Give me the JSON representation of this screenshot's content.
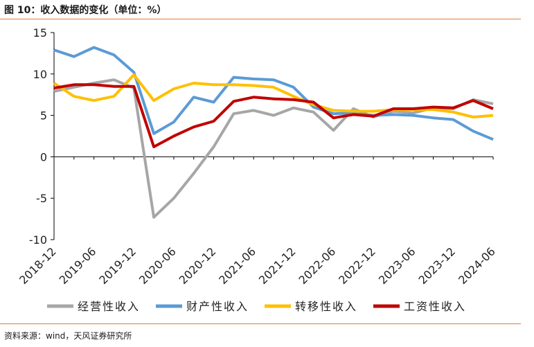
{
  "header": {
    "title": "图 10：收入数据的变化（单位：%）"
  },
  "footer": {
    "source": "资料来源：wind，天风证券研究所"
  },
  "chart_data": {
    "type": "line",
    "x": [
      "2018-12",
      "2019-03",
      "2019-06",
      "2019-09",
      "2019-12",
      "2020-03",
      "2020-06",
      "2020-09",
      "2020-12",
      "2021-03",
      "2021-06",
      "2021-09",
      "2021-12",
      "2022-03",
      "2022-06",
      "2022-09",
      "2022-12",
      "2023-03",
      "2023-06",
      "2023-09",
      "2023-12",
      "2024-03",
      "2024-06"
    ],
    "tick_labels": [
      "2018-12",
      "2019-06",
      "2019-12",
      "2020-06",
      "2020-12",
      "2021-06",
      "2021-12",
      "2022-06",
      "2022-12",
      "2023-06",
      "2023-12",
      "2024-06"
    ],
    "ylim": [
      -10,
      15
    ],
    "yticks": [
      -10,
      -5,
      0,
      5,
      10,
      15
    ],
    "series": [
      {
        "name": "经营性收入",
        "color": "#a6a6a6",
        "values": [
          7.9,
          8.4,
          8.9,
          9.3,
          8.3,
          -7.3,
          -5.0,
          -2.0,
          1.2,
          5.2,
          5.6,
          5.0,
          5.9,
          5.4,
          3.2,
          5.8,
          4.8,
          5.5,
          5.3,
          5.9,
          5.8,
          6.9,
          6.4
        ]
      },
      {
        "name": "财产性收入",
        "color": "#5b9bd5",
        "values": [
          12.9,
          12.1,
          13.2,
          12.3,
          10.2,
          2.8,
          4.2,
          7.2,
          6.6,
          9.6,
          9.4,
          9.3,
          8.4,
          6.0,
          5.2,
          5.3,
          5.0,
          5.1,
          5.0,
          4.7,
          4.5,
          3.1,
          2.1
        ]
      },
      {
        "name": "转移性收入",
        "color": "#ffc000",
        "values": [
          8.9,
          7.3,
          6.8,
          7.3,
          9.9,
          6.8,
          8.2,
          8.9,
          8.7,
          8.7,
          8.6,
          8.4,
          7.3,
          6.3,
          5.6,
          5.5,
          5.5,
          5.7,
          5.7,
          5.7,
          5.4,
          4.8,
          5.0
        ]
      },
      {
        "name": "工资性收入",
        "color": "#c00000",
        "values": [
          8.3,
          8.7,
          8.7,
          8.5,
          8.5,
          1.2,
          2.5,
          3.6,
          4.3,
          6.7,
          7.2,
          7.0,
          6.9,
          6.6,
          4.7,
          5.1,
          4.9,
          5.8,
          5.8,
          6.0,
          5.9,
          6.8,
          5.8
        ]
      }
    ],
    "legend": "bottom",
    "grid": false
  }
}
